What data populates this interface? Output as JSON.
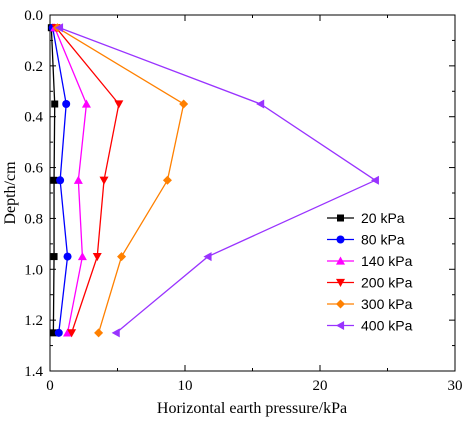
{
  "chart_data": {
    "type": "line",
    "title": "",
    "xlabel": "Horizontal earth pressure/kPa",
    "ylabel": "Depth/cm",
    "xlim": [
      0,
      30
    ],
    "ylim": [
      0.0,
      1.4
    ],
    "y_inverted": true,
    "x_ticks": [
      "0",
      "10",
      "20",
      "30"
    ],
    "y_ticks": [
      "0.0",
      "0.2",
      "0.4",
      "0.6",
      "0.8",
      "1.0",
      "1.2",
      "1.4"
    ],
    "legend_position": "bottom-right",
    "grid": false,
    "depths": [
      0.05,
      0.35,
      0.65,
      0.95,
      1.25
    ],
    "series": [
      {
        "name": "20 kPa",
        "color": "#000000",
        "marker": "square",
        "x": [
          0.1,
          0.35,
          0.3,
          0.3,
          0.25
        ]
      },
      {
        "name": "80 kPa",
        "color": "#0000ff",
        "marker": "circle",
        "x": [
          0.2,
          1.2,
          0.75,
          1.3,
          0.65
        ]
      },
      {
        "name": "140 kPa",
        "color": "#ff00ff",
        "marker": "triangle-up",
        "x": [
          0.35,
          2.7,
          2.1,
          2.4,
          1.3
        ]
      },
      {
        "name": "200 kPa",
        "color": "#ff0000",
        "marker": "triangle-down",
        "x": [
          0.45,
          5.1,
          4.0,
          3.5,
          1.6
        ]
      },
      {
        "name": "300 kPa",
        "color": "#ff8000",
        "marker": "diamond",
        "x": [
          0.55,
          9.9,
          8.7,
          5.3,
          3.6
        ]
      },
      {
        "name": "400 kPa",
        "color": "#9933ff",
        "marker": "triangle-left",
        "x": [
          0.7,
          15.6,
          24.1,
          11.7,
          4.9
        ]
      }
    ]
  }
}
